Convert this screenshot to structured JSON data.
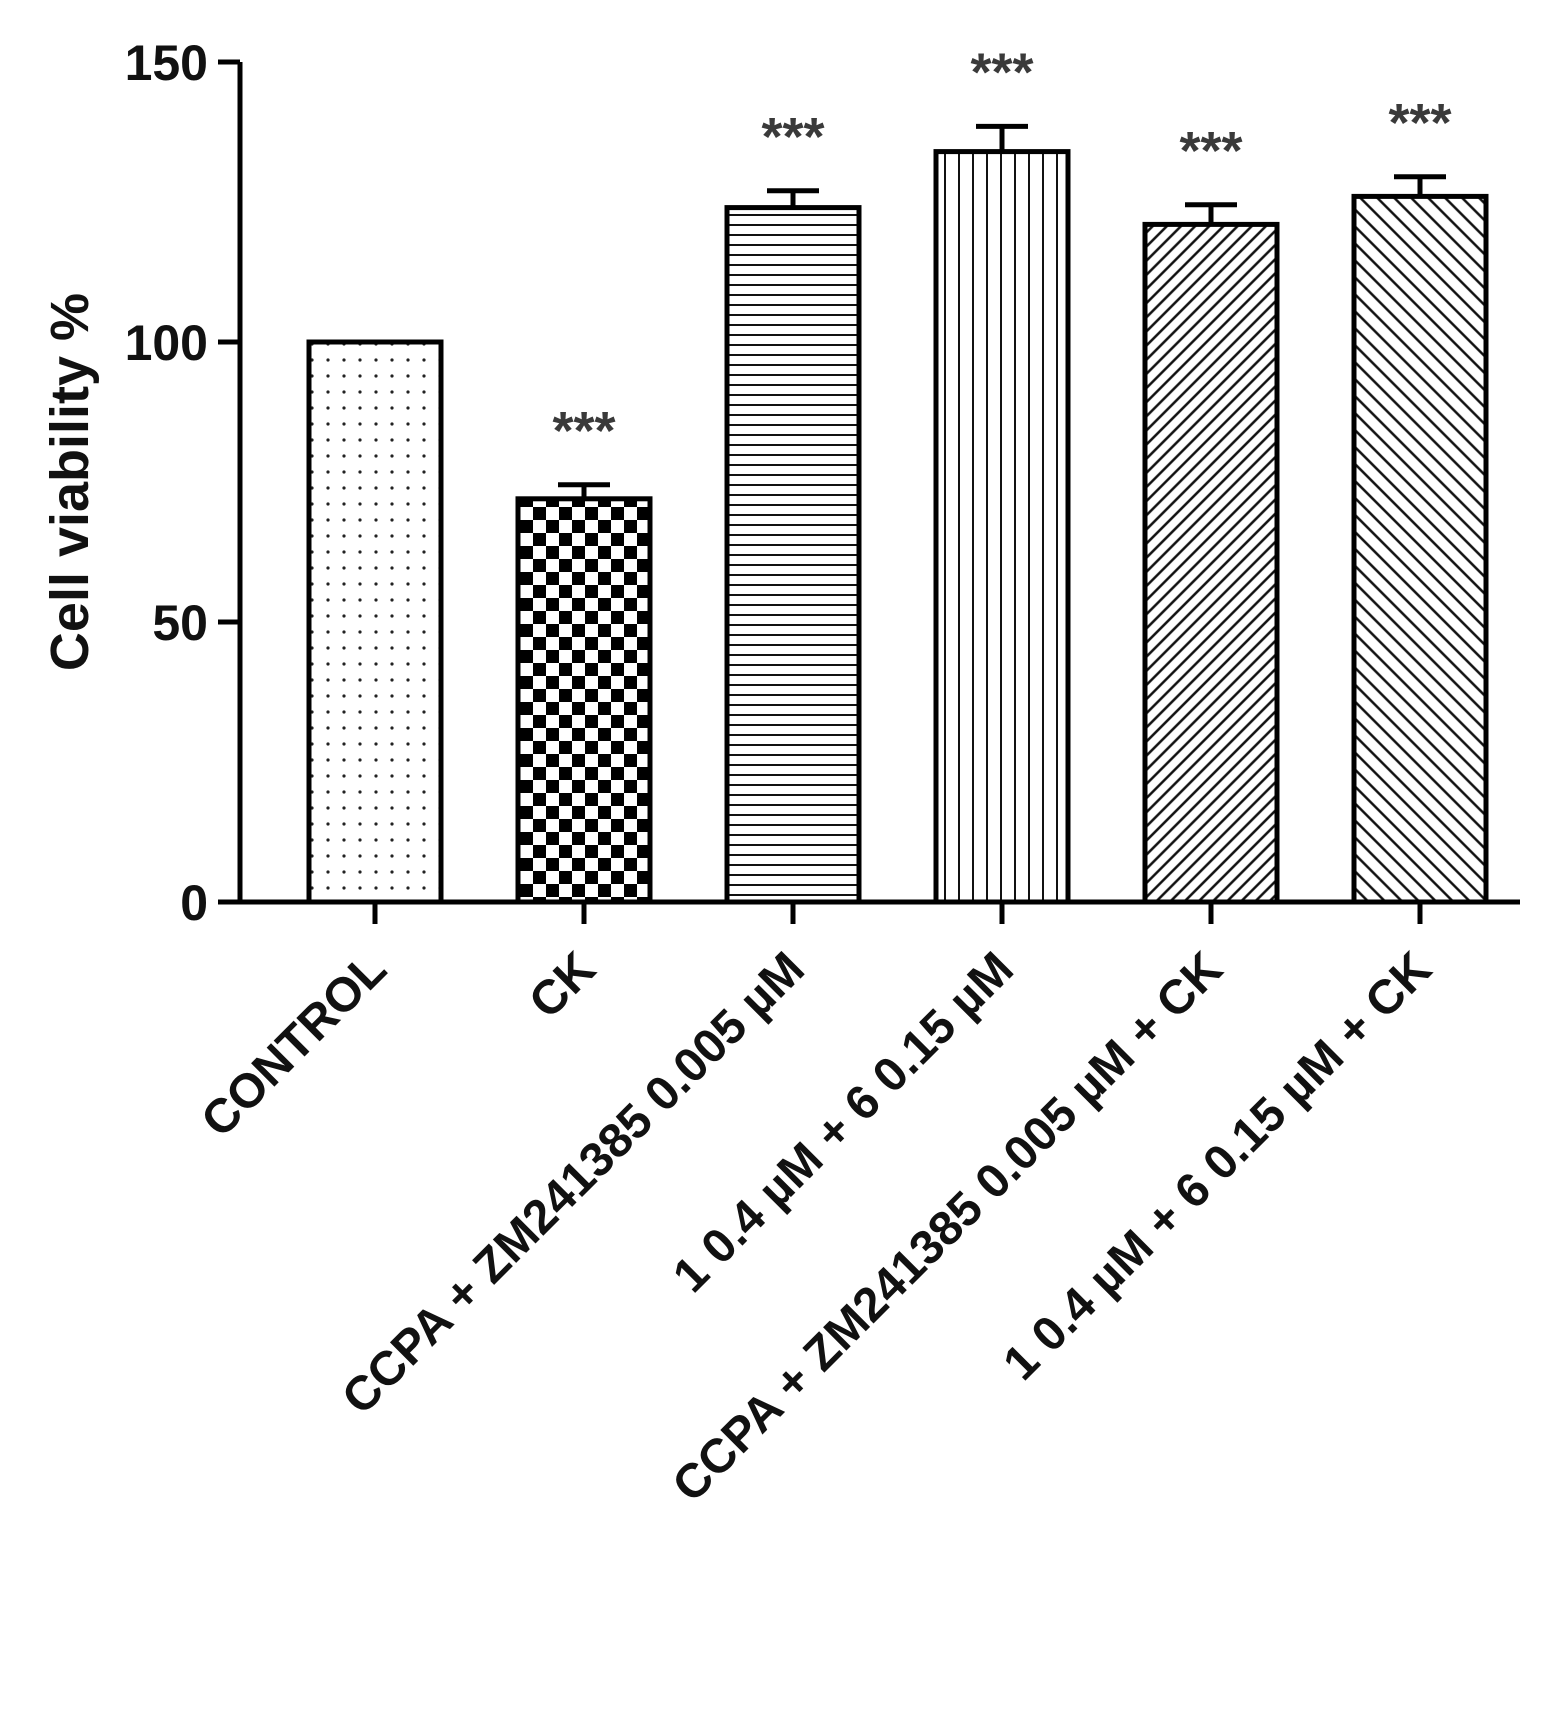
{
  "chart_data": {
    "type": "bar",
    "ylabel": "Cell viability %",
    "xlabel": "",
    "ylim": [
      0,
      150
    ],
    "yticks": [
      0,
      50,
      100,
      150
    ],
    "categories": [
      "CONTROL",
      "CK",
      "CCPA + ZM241385  0.005 µM",
      "1 0.4 µM + 6 0.15 µM",
      "CCPA + ZM241385 0.005 µM + CK",
      "1 0.4 µM + 6 0.15 µM + CK"
    ],
    "values": [
      100,
      72,
      124,
      134,
      121,
      126
    ],
    "errors": [
      0,
      2.5,
      3,
      4.5,
      3.5,
      3.5
    ],
    "significance": [
      "",
      "***",
      "***",
      "***",
      "***",
      "***"
    ],
    "patterns": [
      "dots",
      "checker",
      "horizontal",
      "vertical",
      "diag-forward",
      "diag-back"
    ],
    "grid": false,
    "legend": "none"
  }
}
